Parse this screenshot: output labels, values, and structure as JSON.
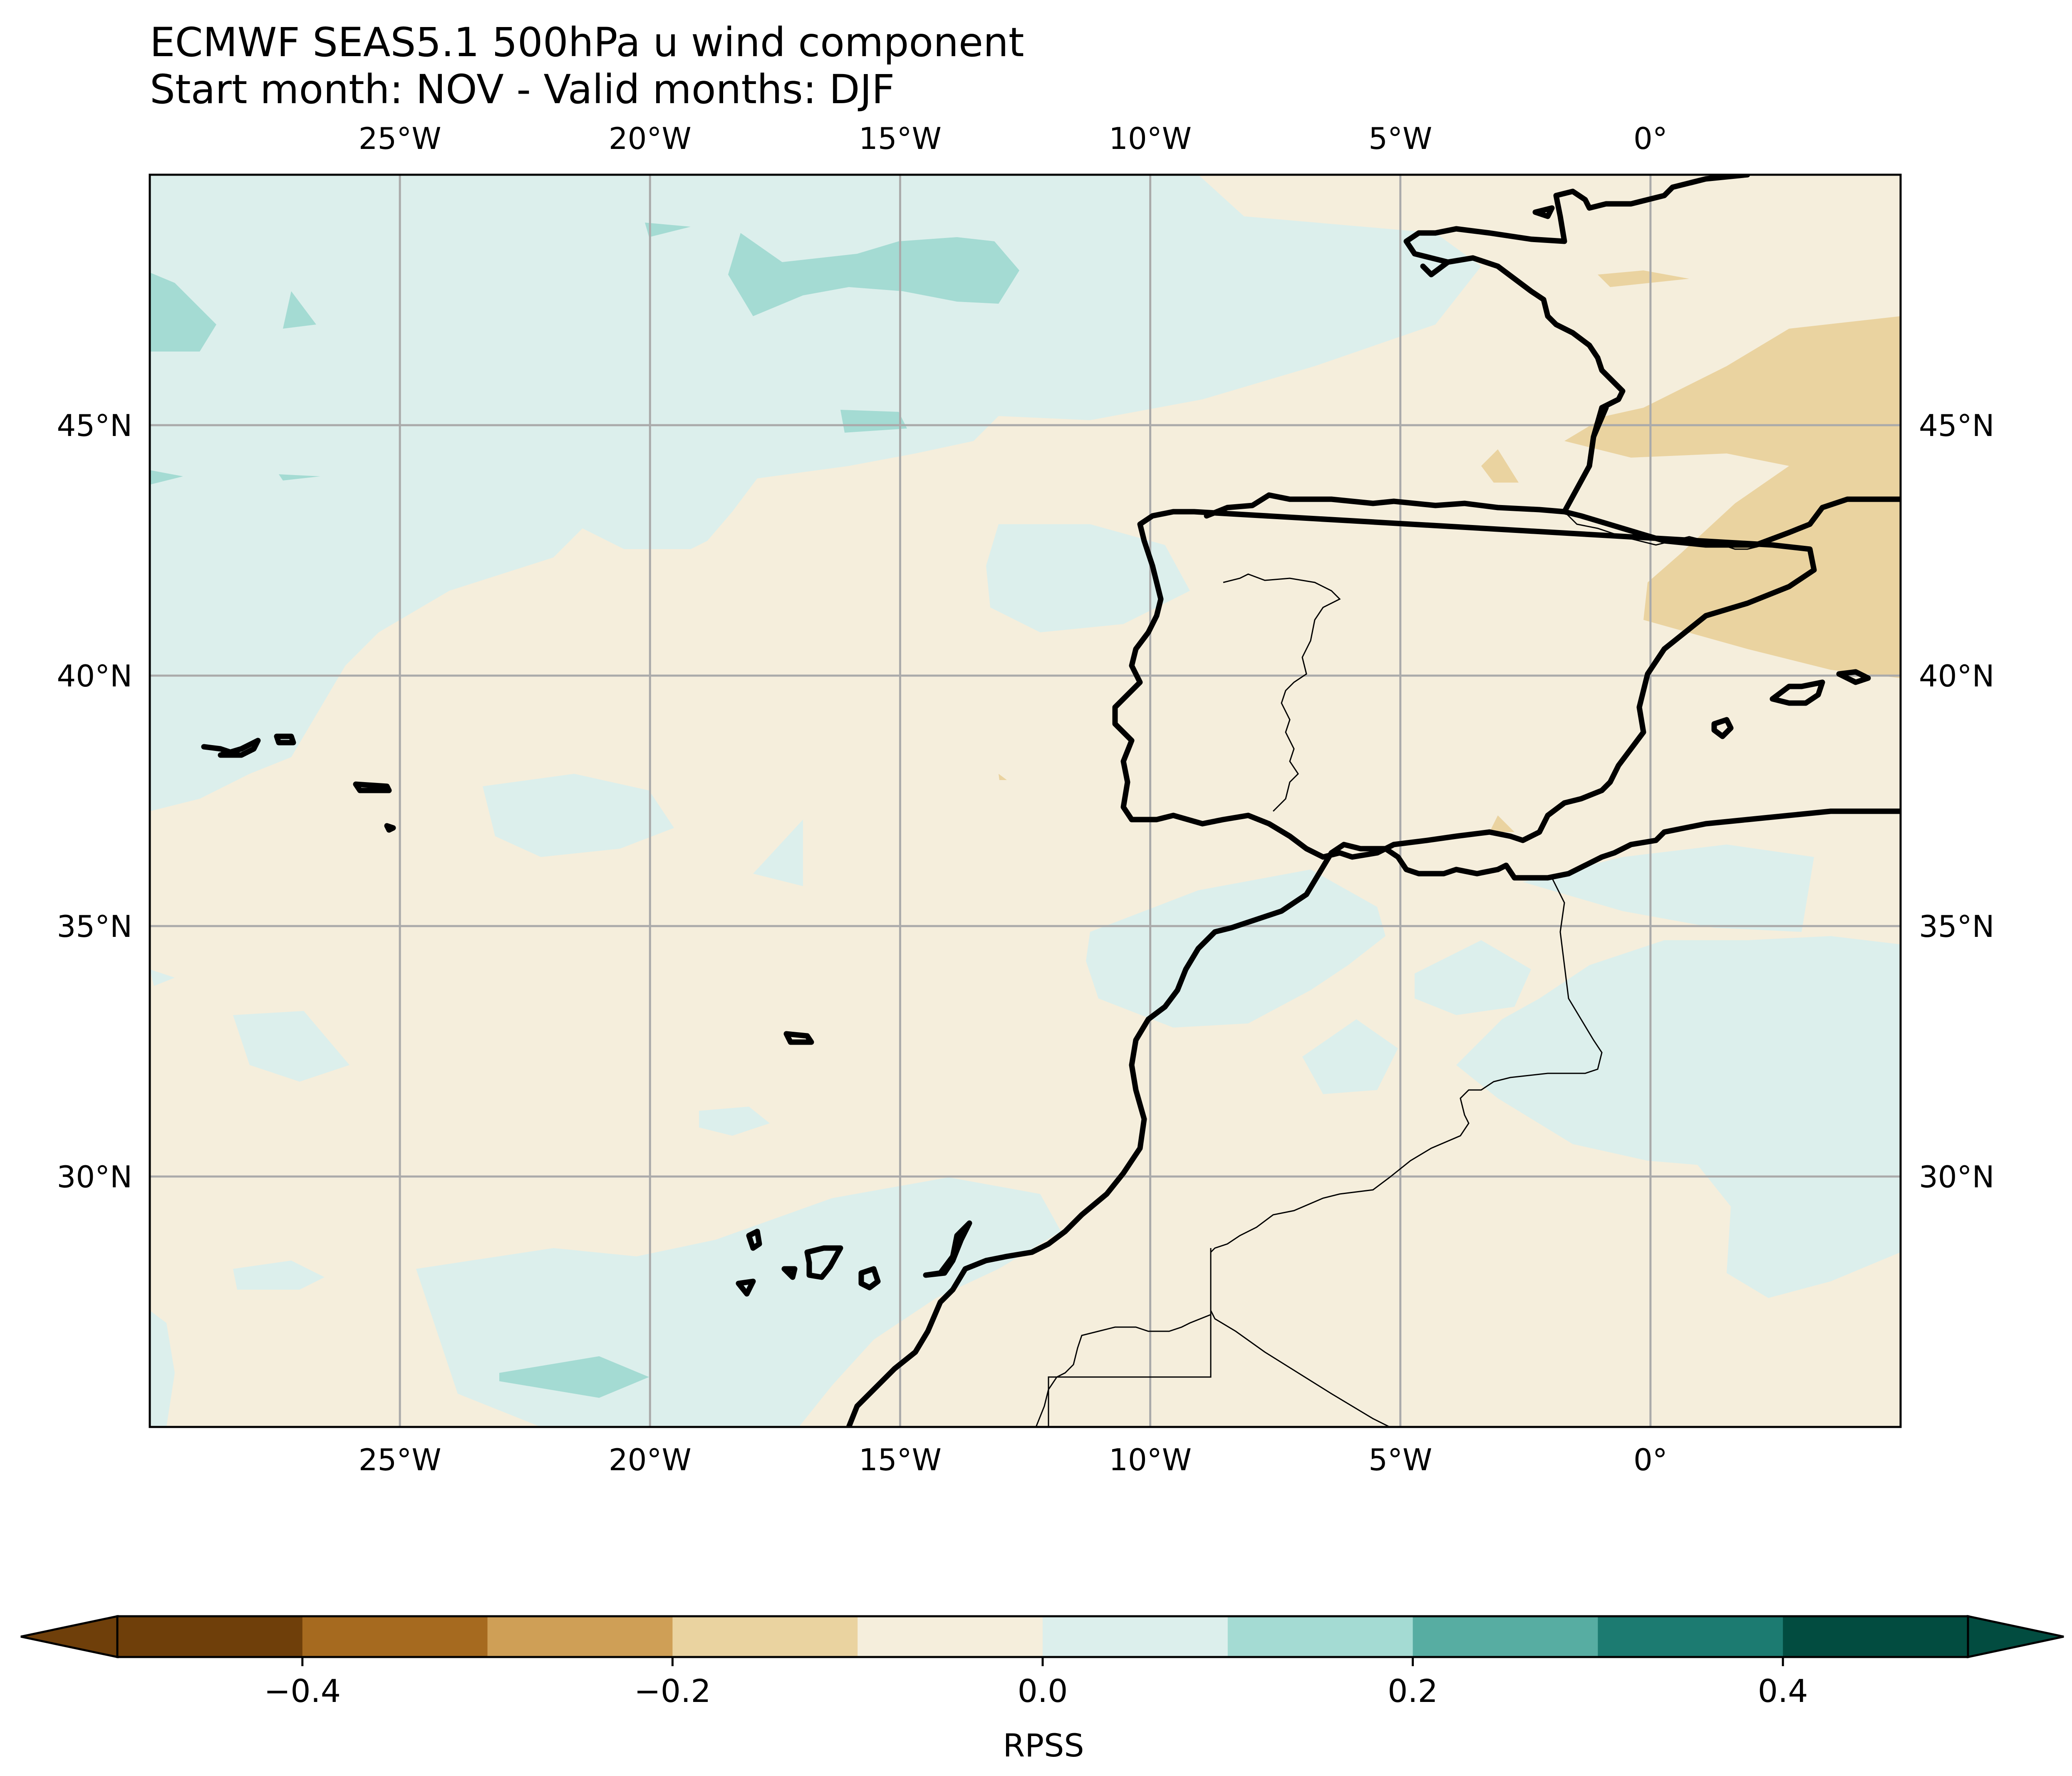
{
  "title": {
    "line1": "ECMWF SEAS5.1 500hPa u wind component",
    "line2": "Start month: NOV - Valid months: DJF"
  },
  "map": {
    "extent": {
      "lon_min": -30,
      "lon_max": 5,
      "lat_min": 25,
      "lat_max": 50
    },
    "lon_ticks": [
      {
        "value": -25,
        "label": "25°W"
      },
      {
        "value": -20,
        "label": "20°W"
      },
      {
        "value": -15,
        "label": "15°W"
      },
      {
        "value": -10,
        "label": "10°W"
      },
      {
        "value": -5,
        "label": "5°W"
      },
      {
        "value": 0,
        "label": "0°"
      }
    ],
    "lat_ticks": [
      {
        "value": 45,
        "label": "45°N"
      },
      {
        "value": 40,
        "label": "40°N"
      },
      {
        "value": 35,
        "label": "35°N"
      },
      {
        "value": 30,
        "label": "30°N"
      }
    ],
    "gridlines": true,
    "field": "RPSS",
    "background_class_color": "#f5eedc"
  },
  "colorbar": {
    "label": "RPSS",
    "boundaries": [
      -0.5,
      -0.4,
      -0.3,
      -0.2,
      -0.1,
      0.0,
      0.1,
      0.2,
      0.3,
      0.4,
      0.5
    ],
    "colors": [
      "#6f3f0a",
      "#a66a1f",
      "#cf9f56",
      "#ead3a0",
      "#f5eedc",
      "#dcefec",
      "#a4dbd3",
      "#57ada2",
      "#1c7b71",
      "#024c40"
    ],
    "extend": "both",
    "ticks": [
      {
        "value": -0.4,
        "label": "−0.4"
      },
      {
        "value": -0.2,
        "label": "−0.2"
      },
      {
        "value": 0.0,
        "label": "0.0"
      },
      {
        "value": 0.2,
        "label": "0.2"
      },
      {
        "value": 0.4,
        "label": "0.4"
      }
    ]
  }
}
